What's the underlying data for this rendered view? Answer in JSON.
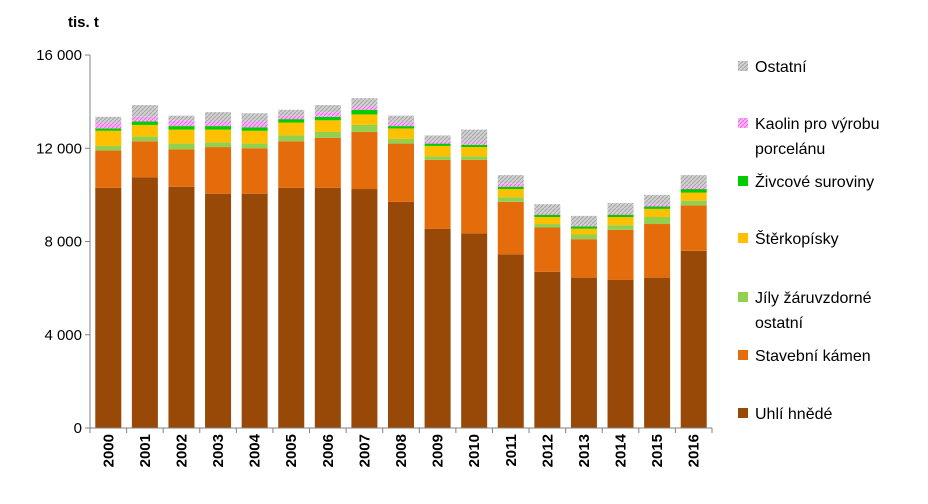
{
  "chart_data": {
    "type": "bar",
    "stacked": true,
    "unit_label": "tis. t",
    "categories": [
      "2000",
      "2001",
      "2002",
      "2003",
      "2004",
      "2005",
      "2006",
      "2007",
      "2008",
      "2009",
      "2010",
      "2011",
      "2012",
      "2013",
      "2014",
      "2015",
      "2016"
    ],
    "yticks": [
      "16 000",
      "12 000",
      "8 000",
      "4 000",
      "0"
    ],
    "ylim": [
      0,
      16000
    ],
    "grid": false,
    "legend_position": "right",
    "series": [
      {
        "name": "Uhlí hnědé",
        "color": "#984807",
        "pattern": "solid",
        "values": [
          10300,
          10750,
          10350,
          10050,
          10050,
          10300,
          10300,
          10250,
          9700,
          8550,
          8350,
          7450,
          6700,
          6450,
          6350,
          6450,
          7600
        ]
      },
      {
        "name": "Stavební kámen",
        "color": "#E46C0A",
        "pattern": "solid",
        "values": [
          1600,
          1550,
          1600,
          2000,
          1950,
          2000,
          2150,
          2450,
          2500,
          2950,
          3150,
          2250,
          1900,
          1650,
          2150,
          2300,
          1950
        ]
      },
      {
        "name": "Jíly žáruvzdorné ostatní",
        "color": "#92D050",
        "pattern": "solid",
        "values": [
          200,
          200,
          250,
          200,
          200,
          250,
          250,
          300,
          200,
          150,
          150,
          200,
          150,
          200,
          200,
          300,
          200
        ]
      },
      {
        "name": "Štěrkopísky",
        "color": "#FFC000",
        "pattern": "solid",
        "values": [
          650,
          500,
          600,
          550,
          550,
          550,
          500,
          450,
          450,
          450,
          400,
          350,
          300,
          250,
          350,
          350,
          350
        ]
      },
      {
        "name": "Živcové suroviny",
        "color": "#00CC00",
        "pattern": "solid",
        "values": [
          100,
          150,
          150,
          150,
          150,
          150,
          150,
          200,
          100,
          100,
          100,
          100,
          100,
          100,
          100,
          100,
          150
        ]
      },
      {
        "name": "Kaolin pro výrobu porcelánu",
        "color": "#FF99FF",
        "pattern": "hatched",
        "values": [
          250,
          200,
          250,
          200,
          250,
          150,
          200,
          150,
          150,
          100,
          100,
          150,
          50,
          50,
          50,
          100,
          100
        ]
      },
      {
        "name": "Ostatní",
        "color": "#BFBFBF",
        "pattern": "hatched",
        "values": [
          250,
          500,
          200,
          400,
          350,
          250,
          300,
          350,
          300,
          250,
          550,
          350,
          400,
          400,
          450,
          400,
          500
        ]
      }
    ]
  }
}
